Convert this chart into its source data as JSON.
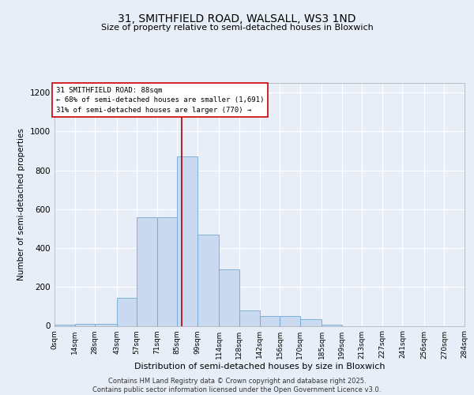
{
  "title_line1": "31, SMITHFIELD ROAD, WALSALL, WS3 1ND",
  "title_line2": "Size of property relative to semi-detached houses in Bloxwich",
  "xlabel": "Distribution of semi-detached houses by size in Bloxwich",
  "ylabel": "Number of semi-detached properties",
  "bin_labels": [
    "0sqm",
    "14sqm",
    "28sqm",
    "43sqm",
    "57sqm",
    "71sqm",
    "85sqm",
    "99sqm",
    "114sqm",
    "128sqm",
    "142sqm",
    "156sqm",
    "170sqm",
    "185sqm",
    "199sqm",
    "213sqm",
    "227sqm",
    "241sqm",
    "256sqm",
    "270sqm",
    "284sqm"
  ],
  "bin_edges": [
    0,
    14,
    28,
    43,
    57,
    71,
    85,
    99,
    114,
    128,
    142,
    156,
    170,
    185,
    199,
    213,
    227,
    241,
    256,
    270,
    284
  ],
  "bar_heights": [
    5,
    10,
    10,
    145,
    560,
    560,
    870,
    470,
    290,
    80,
    50,
    50,
    35,
    5,
    0,
    0,
    0,
    0,
    0,
    0
  ],
  "bar_color": "#c8d9f0",
  "bar_edge_color": "#6fa8d4",
  "vline_x": 88,
  "vline_color": "#aa0000",
  "annotation_text": "31 SMITHFIELD ROAD: 88sqm\n← 68% of semi-detached houses are smaller (1,691)\n31% of semi-detached houses are larger (770) →",
  "annotation_box_color": "#ffffff",
  "annotation_box_edge": "#cc0000",
  "ylim": [
    0,
    1250
  ],
  "yticks": [
    0,
    200,
    400,
    600,
    800,
    1000,
    1200
  ],
  "footer_text": "Contains HM Land Registry data © Crown copyright and database right 2025.\nContains public sector information licensed under the Open Government Licence v3.0.",
  "bg_color": "#e8eef8",
  "plot_bg_color": "#e8eef8",
  "grid_color": "#c8d0e0"
}
